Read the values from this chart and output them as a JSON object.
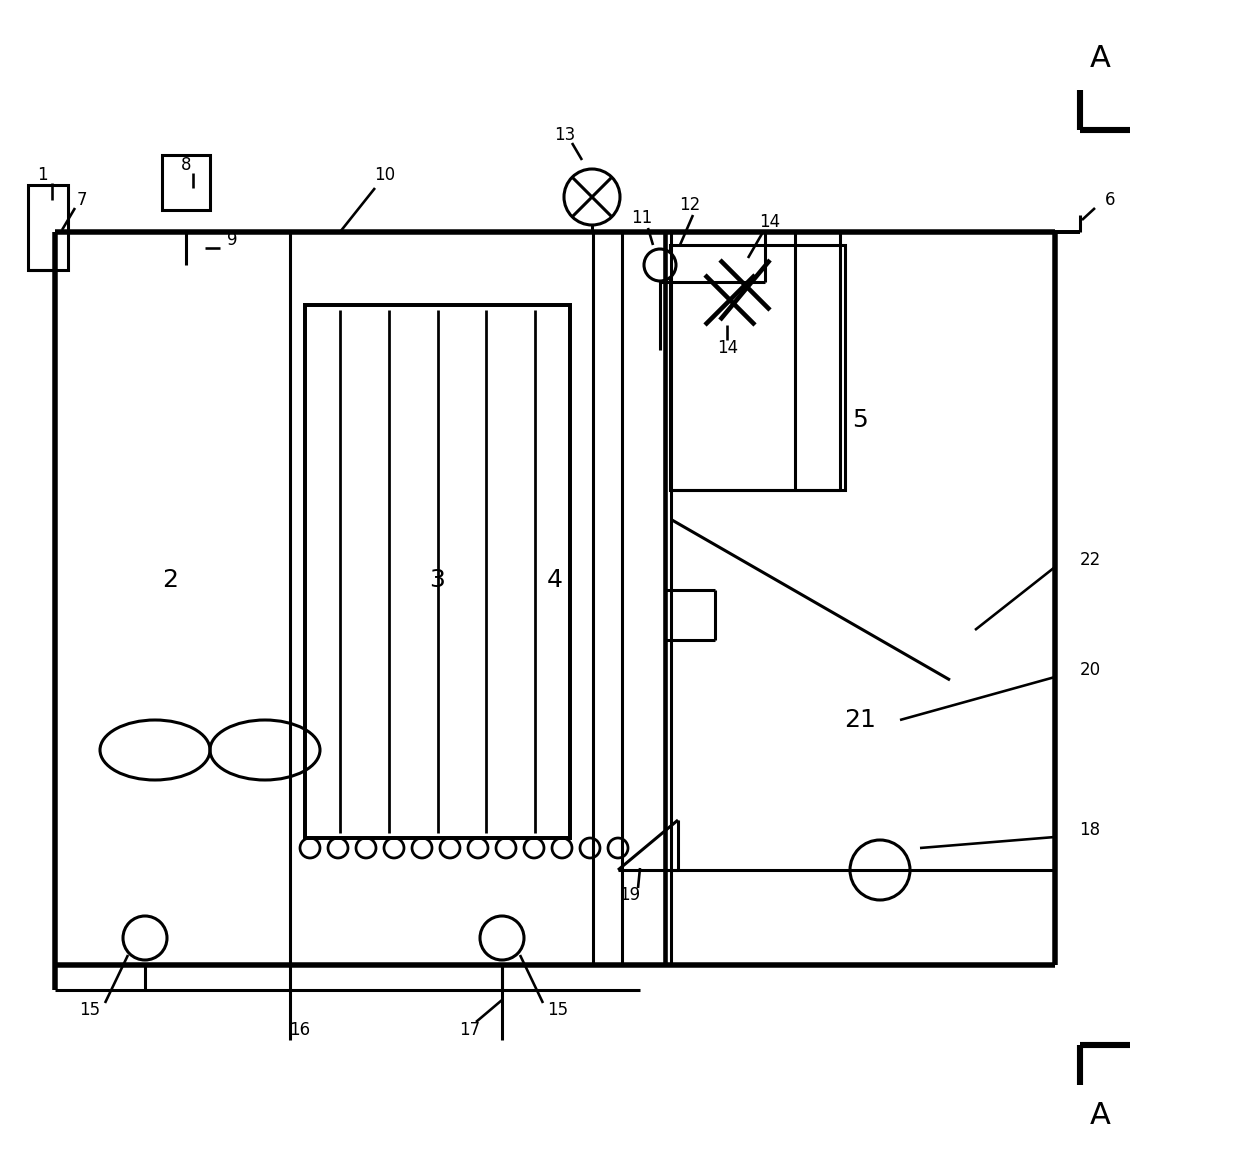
{
  "bg_color": "#ffffff",
  "line_color": "#000000",
  "lw": 2.2,
  "fig_width": 12.4,
  "fig_height": 11.76,
  "dpi": 100
}
